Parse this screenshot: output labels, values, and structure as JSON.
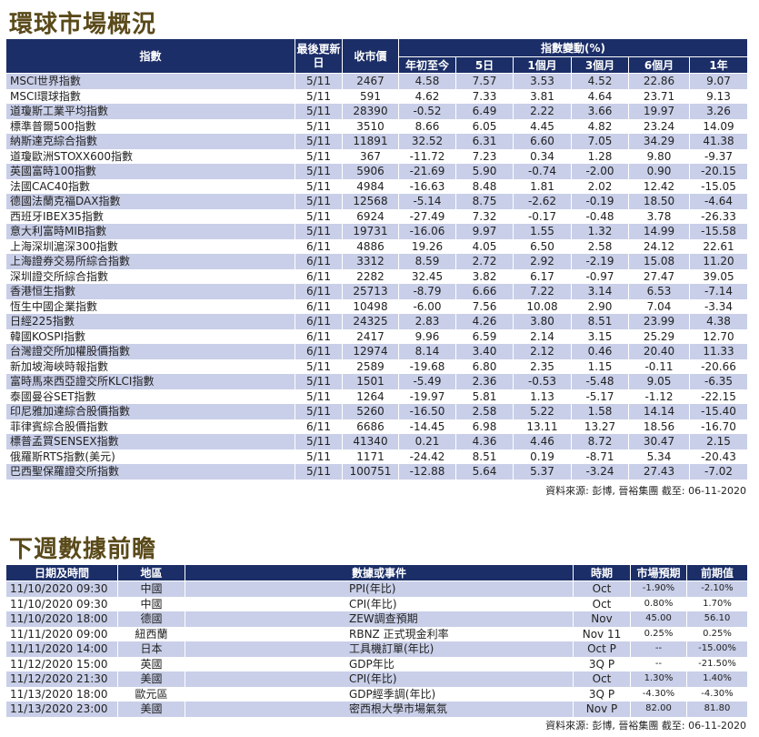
{
  "market": {
    "title": "環球市場概況",
    "headers": {
      "index": "指數",
      "last_update": "最後更新日",
      "close": "收市價",
      "change_group": "指數變動(%)",
      "ytd": "年初至今",
      "d5": "5日",
      "m1": "1個月",
      "m3": "3個月",
      "m6": "6個月",
      "y1": "1年"
    },
    "rows": [
      {
        "name": "MSCI世界指數",
        "date": "5/11",
        "close": "2467",
        "ytd": "4.58",
        "d5": "7.57",
        "m1": "3.53",
        "m3": "4.52",
        "m6": "22.86",
        "y1": "9.07"
      },
      {
        "name": "MSCI環球指數",
        "date": "5/11",
        "close": "591",
        "ytd": "4.62",
        "d5": "7.33",
        "m1": "3.81",
        "m3": "4.64",
        "m6": "23.71",
        "y1": "9.13"
      },
      {
        "name": "道瓊斯工業平均指數",
        "date": "5/11",
        "close": "28390",
        "ytd": "-0.52",
        "d5": "6.49",
        "m1": "2.22",
        "m3": "3.66",
        "m6": "19.97",
        "y1": "3.26"
      },
      {
        "name": "標準普爾500指數",
        "date": "5/11",
        "close": "3510",
        "ytd": "8.66",
        "d5": "6.05",
        "m1": "4.45",
        "m3": "4.82",
        "m6": "23.24",
        "y1": "14.09"
      },
      {
        "name": "納斯達克綜合指數",
        "date": "5/11",
        "close": "11891",
        "ytd": "32.52",
        "d5": "6.31",
        "m1": "6.60",
        "m3": "7.05",
        "m6": "34.29",
        "y1": "41.38"
      },
      {
        "name": "道瓊歐洲STOXX600指數",
        "date": "5/11",
        "close": "367",
        "ytd": "-11.72",
        "d5": "7.23",
        "m1": "0.34",
        "m3": "1.28",
        "m6": "9.80",
        "y1": "-9.37"
      },
      {
        "name": "英國富時100指數",
        "date": "5/11",
        "close": "5906",
        "ytd": "-21.69",
        "d5": "5.90",
        "m1": "-0.74",
        "m3": "-2.00",
        "m6": "0.90",
        "y1": "-20.15"
      },
      {
        "name": "法國CAC40指數",
        "date": "5/11",
        "close": "4984",
        "ytd": "-16.63",
        "d5": "8.48",
        "m1": "1.81",
        "m3": "2.02",
        "m6": "12.42",
        "y1": "-15.05"
      },
      {
        "name": "德國法蘭克福DAX指數",
        "date": "5/11",
        "close": "12568",
        "ytd": "-5.14",
        "d5": "8.75",
        "m1": "-2.62",
        "m3": "-0.19",
        "m6": "18.50",
        "y1": "-4.64"
      },
      {
        "name": "西班牙IBEX35指數",
        "date": "5/11",
        "close": "6924",
        "ytd": "-27.49",
        "d5": "7.32",
        "m1": "-0.17",
        "m3": "-0.48",
        "m6": "3.78",
        "y1": "-26.33"
      },
      {
        "name": "意大利富時MIB指數",
        "date": "5/11",
        "close": "19731",
        "ytd": "-16.06",
        "d5": "9.97",
        "m1": "1.55",
        "m3": "1.32",
        "m6": "14.99",
        "y1": "-15.58"
      },
      {
        "name": "上海深圳滬深300指數",
        "date": "6/11",
        "close": "4886",
        "ytd": "19.26",
        "d5": "4.05",
        "m1": "6.50",
        "m3": "2.58",
        "m6": "24.12",
        "y1": "22.61"
      },
      {
        "name": "上海證券交易所綜合指數",
        "date": "6/11",
        "close": "3312",
        "ytd": "8.59",
        "d5": "2.72",
        "m1": "2.92",
        "m3": "-2.19",
        "m6": "15.08",
        "y1": "11.20"
      },
      {
        "name": "深圳證交所綜合指數",
        "date": "6/11",
        "close": "2282",
        "ytd": "32.45",
        "d5": "3.82",
        "m1": "6.17",
        "m3": "-0.97",
        "m6": "27.47",
        "y1": "39.05"
      },
      {
        "name": "香港恒生指數",
        "date": "6/11",
        "close": "25713",
        "ytd": "-8.79",
        "d5": "6.66",
        "m1": "7.22",
        "m3": "3.14",
        "m6": "6.53",
        "y1": "-7.14"
      },
      {
        "name": "恆生中國企業指數",
        "date": "6/11",
        "close": "10498",
        "ytd": "-6.00",
        "d5": "7.56",
        "m1": "10.08",
        "m3": "2.90",
        "m6": "7.04",
        "y1": "-3.34"
      },
      {
        "name": "日經225指數",
        "date": "6/11",
        "close": "24325",
        "ytd": "2.83",
        "d5": "4.26",
        "m1": "3.80",
        "m3": "8.51",
        "m6": "23.99",
        "y1": "4.38"
      },
      {
        "name": "韓國KOSPI指數",
        "date": "6/11",
        "close": "2417",
        "ytd": "9.96",
        "d5": "6.59",
        "m1": "2.14",
        "m3": "3.15",
        "m6": "25.29",
        "y1": "12.70"
      },
      {
        "name": "台灣證交所加權股價指數",
        "date": "6/11",
        "close": "12974",
        "ytd": "8.14",
        "d5": "3.40",
        "m1": "2.12",
        "m3": "0.46",
        "m6": "20.40",
        "y1": "11.33"
      },
      {
        "name": "新加坡海峽時報指數",
        "date": "5/11",
        "close": "2589",
        "ytd": "-19.68",
        "d5": "6.80",
        "m1": "2.35",
        "m3": "1.15",
        "m6": "-0.11",
        "y1": "-20.66"
      },
      {
        "name": "富時馬來西亞證交所KLCI指數",
        "date": "5/11",
        "close": "1501",
        "ytd": "-5.49",
        "d5": "2.36",
        "m1": "-0.53",
        "m3": "-5.48",
        "m6": "9.05",
        "y1": "-6.35"
      },
      {
        "name": "泰國曼谷SET指數",
        "date": "5/11",
        "close": "1264",
        "ytd": "-19.97",
        "d5": "5.81",
        "m1": "1.13",
        "m3": "-5.17",
        "m6": "-1.12",
        "y1": "-22.15"
      },
      {
        "name": "印尼雅加達綜合股價指數",
        "date": "5/11",
        "close": "5260",
        "ytd": "-16.50",
        "d5": "2.58",
        "m1": "5.22",
        "m3": "1.58",
        "m6": "14.14",
        "y1": "-15.40"
      },
      {
        "name": "菲律賓綜合股價指數",
        "date": "6/11",
        "close": "6686",
        "ytd": "-14.45",
        "d5": "6.98",
        "m1": "13.11",
        "m3": "13.27",
        "m6": "18.56",
        "y1": "-16.70"
      },
      {
        "name": "標普孟買SENSEX指數",
        "date": "5/11",
        "close": "41340",
        "ytd": "0.21",
        "d5": "4.36",
        "m1": "4.46",
        "m3": "8.72",
        "m6": "30.47",
        "y1": "2.15"
      },
      {
        "name": "俄羅斯RTS指數(美元)",
        "date": "5/11",
        "close": "1171",
        "ytd": "-24.42",
        "d5": "8.51",
        "m1": "0.19",
        "m3": "-8.71",
        "m6": "5.34",
        "y1": "-20.43"
      },
      {
        "name": "巴西聖保羅證交所指數",
        "date": "5/11",
        "close": "100751",
        "ytd": "-12.88",
        "d5": "5.64",
        "m1": "5.37",
        "m3": "-3.24",
        "m6": "27.43",
        "y1": "-7.02"
      }
    ],
    "source": "資料來源: 彭博, 晉裕集團 截至: 06-11-2020"
  },
  "preview": {
    "title": "下週數據前瞻",
    "headers": {
      "datetime": "日期及時間",
      "region": "地區",
      "event": "數據或事件",
      "period": "時期",
      "forecast": "市場預期",
      "previous": "前期值"
    },
    "rows": [
      {
        "datetime": "11/10/2020 09:30",
        "region": "中國",
        "event": "PPI(年比)",
        "period": "Oct",
        "forecast": "-1.90%",
        "previous": "-2.10%"
      },
      {
        "datetime": "11/10/2020 09:30",
        "region": "中國",
        "event": "CPI(年比)",
        "period": "Oct",
        "forecast": "0.80%",
        "previous": "1.70%"
      },
      {
        "datetime": "11/10/2020 18:00",
        "region": "德國",
        "event": "ZEW調查預期",
        "period": "Nov",
        "forecast": "45.00",
        "previous": "56.10"
      },
      {
        "datetime": "11/11/2020 09:00",
        "region": "紐西蘭",
        "event": "RBNZ 正式現金利率",
        "period": "Nov 11",
        "forecast": "0.25%",
        "previous": "0.25%"
      },
      {
        "datetime": "11/11/2020 14:00",
        "region": "日本",
        "event": "工具機訂單(年比)",
        "period": "Oct P",
        "forecast": "--",
        "previous": "-15.00%"
      },
      {
        "datetime": "11/12/2020 15:00",
        "region": "英國",
        "event": "GDP年比",
        "period": "3Q P",
        "forecast": "--",
        "previous": "-21.50%"
      },
      {
        "datetime": "11/12/2020 21:30",
        "region": "美國",
        "event": "CPI(年比)",
        "period": "Oct",
        "forecast": "1.30%",
        "previous": "1.40%"
      },
      {
        "datetime": "11/13/2020 18:00",
        "region": "歐元區",
        "event": "GDP經季調(年比)",
        "period": "3Q P",
        "forecast": "-4.30%",
        "previous": "-4.30%"
      },
      {
        "datetime": "11/13/2020 23:00",
        "region": "美國",
        "event": "密西根大學市場氣氛",
        "period": "Nov P",
        "forecast": "82.00",
        "previous": "81.80"
      }
    ],
    "source": "資料來源: 彭博, 晉裕集團 截至: 06-11-2020"
  }
}
